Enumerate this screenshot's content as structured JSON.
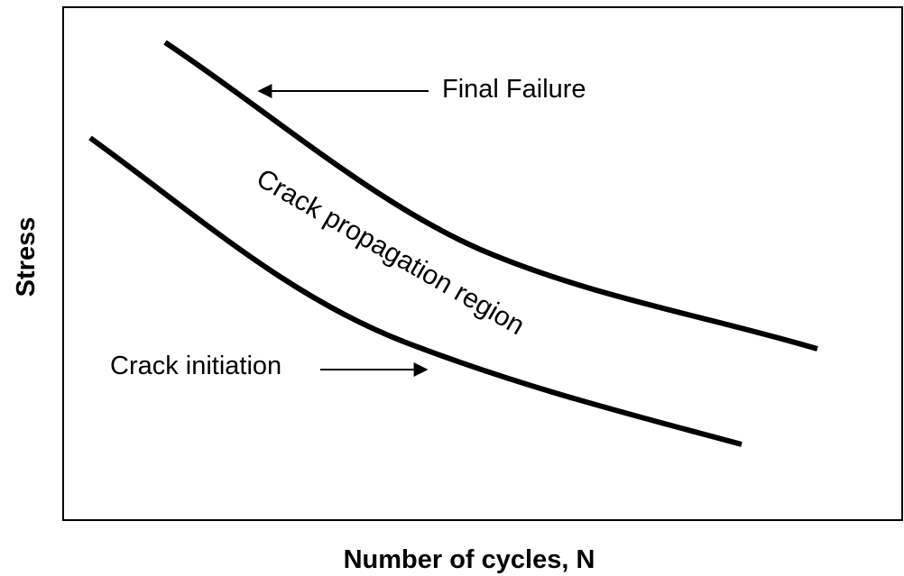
{
  "axes": {
    "x_label": "Number of cycles, N",
    "y_label": "Stress"
  },
  "annotations": {
    "final_failure": "Final Failure",
    "crack_initiation": "Crack initiation",
    "propagation": "Crack propagation region"
  }
}
